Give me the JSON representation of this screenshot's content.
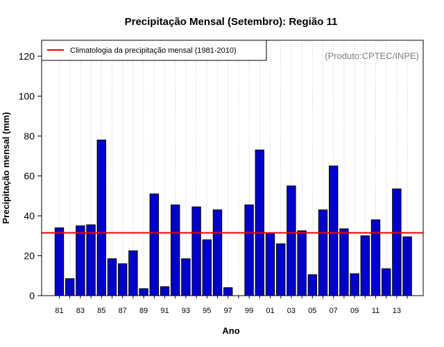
{
  "chart_data": {
    "type": "bar",
    "title": "Precipitação Mensal (Setembro): Região 11",
    "xlabel": "Ano",
    "ylabel": "Precipitação mensal (mm)",
    "ylim": [
      0,
      128
    ],
    "yticks": [
      0,
      20,
      40,
      60,
      80,
      100,
      120
    ],
    "grid": "vertical dotted lines at each year",
    "legend_position": "top-left",
    "watermark": "(Produto:CPTEC/INPE)",
    "categories": [
      "81",
      "82",
      "83",
      "84",
      "85",
      "86",
      "87",
      "88",
      "89",
      "90",
      "91",
      "92",
      "93",
      "94",
      "95",
      "96",
      "97",
      "98",
      "99",
      "00",
      "01",
      "02",
      "03",
      "04",
      "05",
      "06",
      "07",
      "08",
      "09",
      "10",
      "11",
      "12",
      "13",
      "14"
    ],
    "tick_labels": [
      "81",
      "83",
      "85",
      "87",
      "89",
      "91",
      "93",
      "95",
      "97",
      "99",
      "01",
      "03",
      "05",
      "07",
      "09",
      "11",
      "13"
    ],
    "series": [
      {
        "name": "Precipitação mensal",
        "color": "#0000cc",
        "values": [
          34,
          8.5,
          35,
          35.5,
          78,
          18.5,
          16,
          22.5,
          3.5,
          51,
          4.5,
          45.5,
          18.5,
          44.5,
          28,
          43,
          4,
          null,
          45.5,
          73,
          31.5,
          26,
          55,
          32.5,
          10.5,
          43,
          65,
          33.5,
          11,
          30,
          38,
          13.5,
          53.5,
          29.5
        ]
      }
    ],
    "reference_line": {
      "label": "Climatologia da precipitação mensal (1981-2010)",
      "value": 31.5,
      "color": "#ee0000"
    }
  }
}
